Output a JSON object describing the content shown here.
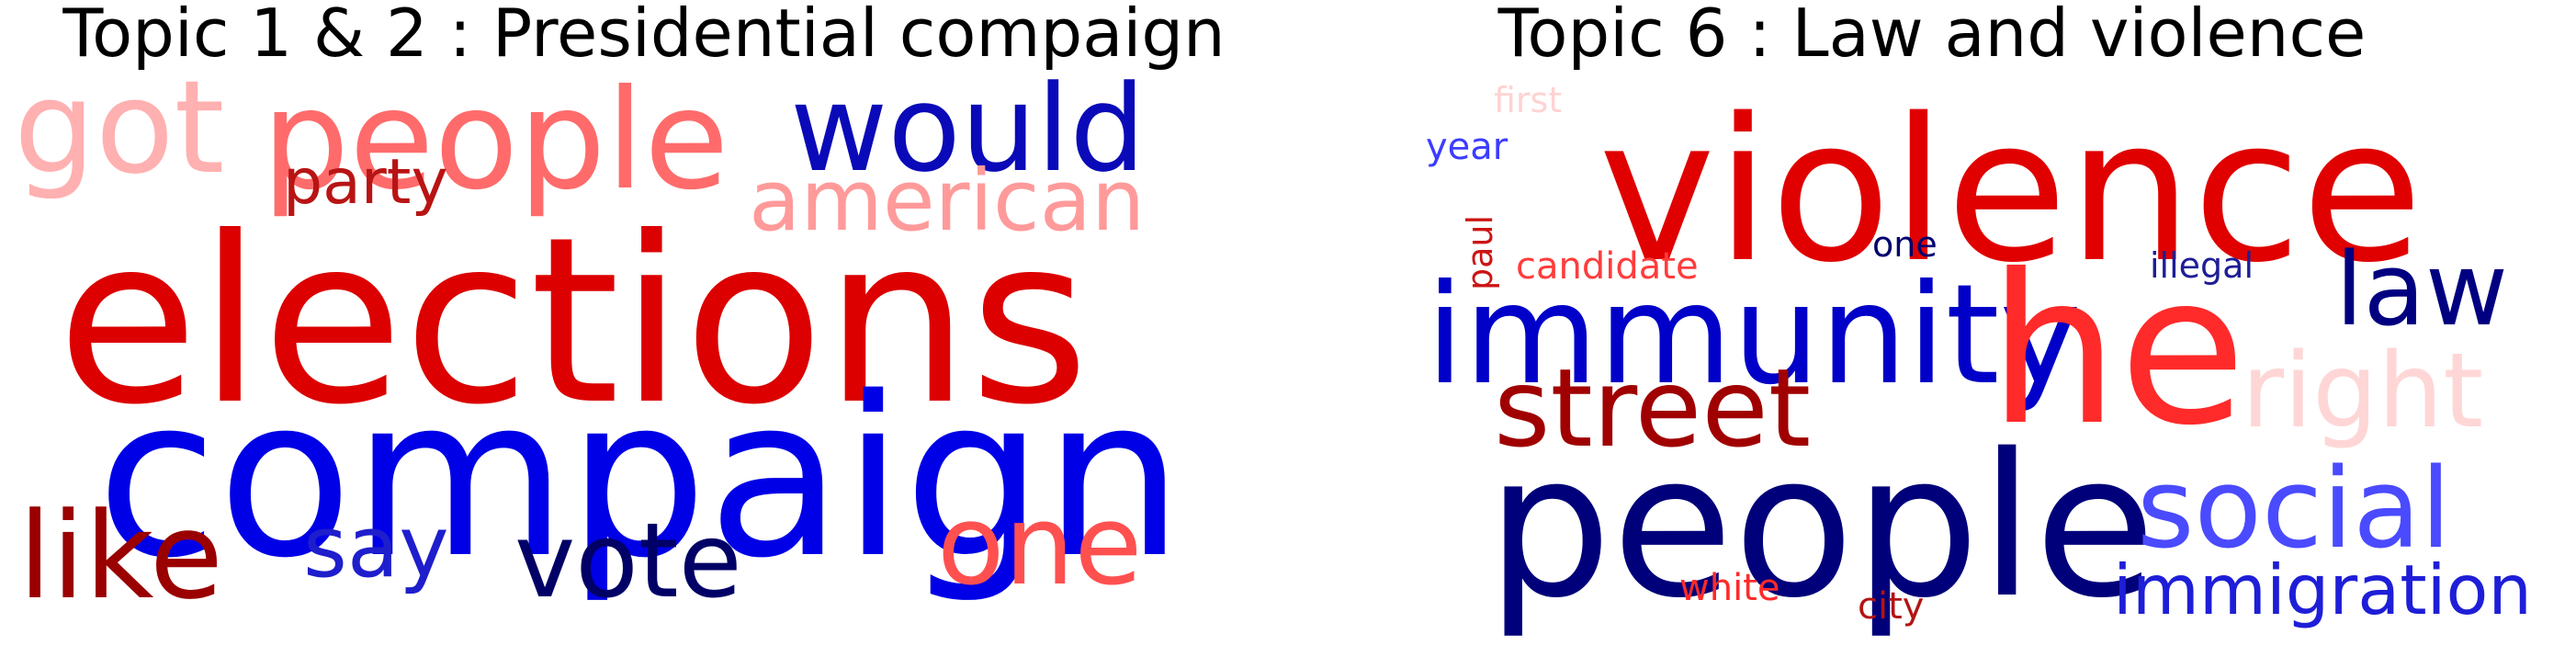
{
  "panels": [
    {
      "title": "Topic 1 & 2 : Presidential compaign",
      "words": [
        "got",
        "people",
        "would",
        "party",
        "american",
        "elections",
        "compaign",
        "like",
        "say",
        "vote",
        "one"
      ],
      "colors": [
        "#ffb0b0",
        "#ff6b6b",
        "#0a0ab8",
        "#b81414",
        "#ff9a9a",
        "#dc0000",
        "#0000e6",
        "#9a0000",
        "#1e1ecc",
        "#000066",
        "#ff5050"
      ]
    },
    {
      "title": "Topic 6 : Law and violence",
      "words": [
        "first",
        "year",
        "violence",
        "paul",
        "candidate",
        "one",
        "illegal",
        "immunity",
        "he",
        "law",
        "street",
        "right",
        "people",
        "social",
        "white",
        "city",
        "immigration"
      ],
      "colors": [
        "#ffd2d2",
        "#3c3cff",
        "#e00000",
        "#cc1414",
        "#ff3c3c",
        "#00006e",
        "#1e1e96",
        "#0000c8",
        "#ff2a2a",
        "#000080",
        "#a00000",
        "#ffd6d6",
        "#00007a",
        "#4a4aff",
        "#ff2a2a",
        "#b41414",
        "#1e1ed8"
      ]
    }
  ]
}
